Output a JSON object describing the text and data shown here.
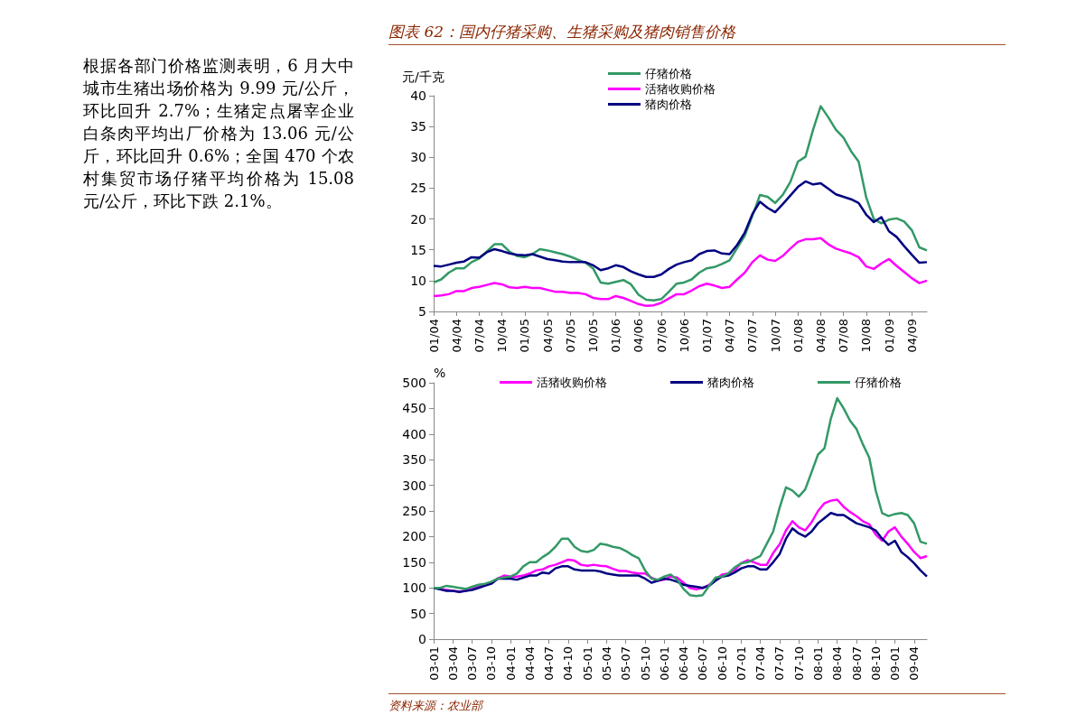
{
  "chart_data": [
    {
      "type": "other",
      "annotations": [
        "根据各部门价格监测表明，6 月大中城市生猪出场价格为 9.99 元/公斤，环比回升 2.7%；生猪定点屠宰企业白条肉平均出厂价格为 13.06 元/公斤，环比回升 0.6%；全国 470 个农村集贸市场仔猪平均价格为 15.08 元/公斤，环比下跌 2.1%。"
      ]
    },
    {
      "type": "line",
      "title": "图表 62：国内仔猪采购、生猪采购及猪肉销售价格",
      "ylabel": "元/千克",
      "legend": "top left",
      "grid": false,
      "ylim": [
        5,
        40
      ],
      "yticks": [
        5,
        10,
        15,
        20,
        25,
        30,
        35,
        40
      ],
      "categories": [
        "01/04",
        null,
        null,
        "04/04",
        null,
        null,
        "07/04",
        null,
        null,
        "10/04",
        null,
        null,
        "01/05",
        null,
        null,
        "04/05",
        null,
        null,
        "07/05",
        null,
        null,
        "10/05",
        null,
        null,
        "01/06",
        null,
        null,
        "04/06",
        null,
        null,
        "07/06",
        null,
        null,
        "10/06",
        null,
        null,
        "01/07",
        null,
        null,
        "04/07",
        null,
        null,
        "07/07",
        null,
        null,
        "10/07",
        null,
        null,
        "01/08",
        null,
        null,
        "04/08",
        null,
        null,
        "07/08",
        null,
        null,
        "10/08",
        null,
        null,
        "01/09",
        null,
        null,
        "04/09",
        null,
        null
      ],
      "series": [
        {
          "name": "仔猪价格",
          "color": "#339966",
          "values": [
            9.7,
            10.2,
            11.3,
            12.0,
            12.0,
            13.0,
            13.6,
            14.7,
            15.9,
            15.9,
            14.7,
            14.0,
            13.8,
            14.3,
            15.1,
            14.9,
            14.6,
            14.3,
            13.9,
            13.4,
            12.9,
            12.0,
            9.7,
            9.5,
            9.8,
            10.1,
            9.4,
            7.7,
            6.9,
            6.8,
            7.0,
            8.2,
            9.5,
            9.7,
            10.2,
            11.3,
            12.0,
            12.2,
            12.7,
            13.3,
            15.3,
            17.3,
            20.5,
            23.9,
            23.6,
            22.6,
            23.9,
            26.0,
            29.3,
            30.1,
            34.5,
            38.3,
            36.5,
            34.5,
            33.2,
            31.0,
            29.3,
            23.5,
            20.0,
            19.3,
            19.9,
            20.1,
            19.6,
            18.2,
            15.4,
            14.9
          ]
        },
        {
          "name": "活猪收购价格",
          "color": "#ff00ff",
          "values": [
            7.5,
            7.6,
            7.8,
            8.3,
            8.3,
            8.8,
            9.0,
            9.3,
            9.6,
            9.4,
            8.9,
            8.8,
            9.0,
            8.8,
            8.8,
            8.5,
            8.2,
            8.2,
            8.0,
            8.0,
            7.8,
            7.2,
            7.0,
            7.0,
            7.5,
            7.2,
            6.7,
            6.2,
            5.9,
            6.0,
            6.4,
            7.1,
            7.8,
            7.8,
            8.4,
            9.1,
            9.5,
            9.2,
            8.8,
            9.0,
            10.2,
            11.3,
            13.0,
            14.1,
            13.4,
            13.2,
            14.0,
            15.2,
            16.3,
            16.7,
            16.7,
            16.9,
            15.9,
            15.2,
            14.8,
            14.4,
            13.8,
            12.3,
            11.9,
            12.8,
            13.5,
            12.4,
            11.4,
            10.4,
            9.6,
            10.0
          ]
        },
        {
          "name": "猪肉价格",
          "color": "#000080",
          "values": [
            12.4,
            12.3,
            12.6,
            12.9,
            13.1,
            13.8,
            13.7,
            14.6,
            15.1,
            14.8,
            14.4,
            14.2,
            14.1,
            14.3,
            13.9,
            13.5,
            13.3,
            13.1,
            13.0,
            13.0,
            13.0,
            12.5,
            11.7,
            12.0,
            12.5,
            12.2,
            11.5,
            11.0,
            10.6,
            10.6,
            11.0,
            11.9,
            12.6,
            13.0,
            13.3,
            14.3,
            14.8,
            14.9,
            14.4,
            14.3,
            15.8,
            17.8,
            20.8,
            22.8,
            21.8,
            21.1,
            22.4,
            23.8,
            25.2,
            26.1,
            25.6,
            25.8,
            24.9,
            24.0,
            23.6,
            23.2,
            22.6,
            20.7,
            19.5,
            20.3,
            18.0,
            17.1,
            15.6,
            14.2,
            12.9,
            13.0
          ]
        }
      ]
    },
    {
      "type": "line",
      "ylabel": "%",
      "legend": "top",
      "grid": false,
      "ylim": [
        0,
        500
      ],
      "yticks": [
        0,
        50,
        100,
        150,
        200,
        250,
        300,
        350,
        400,
        450,
        500
      ],
      "annotations": [
        "资料来源：农业部"
      ],
      "categories": [
        "03-01",
        null,
        null,
        "03-04",
        null,
        null,
        "03-07",
        null,
        null,
        "03-10",
        null,
        null,
        "04-01",
        null,
        null,
        "04-04",
        null,
        null,
        "04-07",
        null,
        null,
        "04-10",
        null,
        null,
        "05-01",
        null,
        null,
        "05-04",
        null,
        null,
        "05-07",
        null,
        null,
        "05-10",
        null,
        null,
        "06-01",
        null,
        null,
        "06-04",
        null,
        null,
        "06-07",
        null,
        null,
        "06-10",
        null,
        null,
        "07-01",
        null,
        null,
        "07-04",
        null,
        null,
        "07-07",
        null,
        null,
        "07-10",
        null,
        null,
        "08-01",
        null,
        null,
        "08-04",
        null,
        null,
        "08-07",
        null,
        null,
        "08-10",
        null,
        null,
        "09-01",
        null,
        null,
        "09-04",
        null,
        null
      ],
      "series": [
        {
          "name": "活猪收购价格",
          "color": "#ff00ff",
          "values": [
            100,
            98,
            96,
            94,
            93,
            94,
            98,
            102,
            106,
            110,
            118,
            124,
            122,
            122,
            124,
            128,
            134,
            136,
            142,
            145,
            150,
            155,
            153,
            145,
            143,
            145,
            143,
            142,
            137,
            133,
            133,
            130,
            128,
            128,
            120,
            114,
            116,
            122,
            120,
            110,
            100,
            97,
            100,
            106,
            116,
            126,
            128,
            135,
            148,
            154,
            150,
            145,
            145,
            168,
            185,
            212,
            230,
            218,
            212,
            228,
            250,
            265,
            270,
            272,
            258,
            248,
            240,
            230,
            224,
            204,
            192,
            210,
            218,
            200,
            186,
            170,
            158,
            162
          ]
        },
        {
          "name": "猪肉价格",
          "color": "#000080",
          "values": [
            100,
            97,
            94,
            94,
            92,
            94,
            96,
            100,
            104,
            108,
            118,
            118,
            118,
            116,
            120,
            124,
            124,
            130,
            128,
            138,
            142,
            142,
            136,
            134,
            134,
            134,
            132,
            128,
            126,
            124,
            124,
            124,
            124,
            118,
            110,
            114,
            118,
            116,
            112,
            106,
            104,
            102,
            100,
            104,
            114,
            122,
            124,
            130,
            138,
            142,
            142,
            136,
            136,
            150,
            166,
            196,
            216,
            206,
            200,
            210,
            226,
            236,
            246,
            242,
            242,
            234,
            226,
            222,
            218,
            212,
            196,
            184,
            192,
            170,
            160,
            148,
            134,
            122
          ]
        },
        {
          "name": "仔猪价格",
          "color": "#339966",
          "values": [
            100,
            100,
            104,
            102,
            100,
            98,
            102,
            106,
            108,
            112,
            118,
            120,
            122,
            128,
            142,
            150,
            150,
            160,
            168,
            180,
            196,
            196,
            180,
            172,
            170,
            174,
            186,
            184,
            180,
            178,
            172,
            164,
            158,
            134,
            118,
            116,
            122,
            126,
            116,
            98,
            86,
            84,
            86,
            104,
            120,
            122,
            128,
            140,
            148,
            150,
            156,
            162,
            186,
            210,
            256,
            296,
            290,
            278,
            292,
            326,
            360,
            372,
            430,
            470,
            450,
            426,
            410,
            380,
            354,
            290,
            246,
            240,
            244,
            246,
            242,
            226,
            190,
            186
          ]
        }
      ]
    }
  ]
}
